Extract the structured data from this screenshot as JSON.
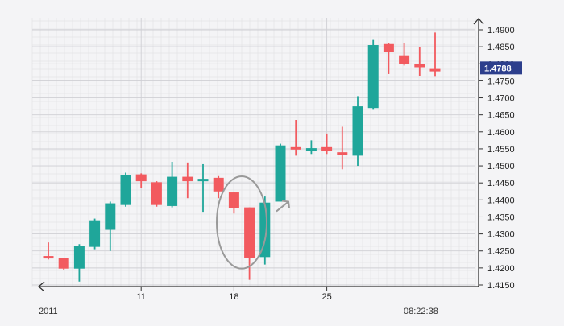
{
  "chart_data": {
    "type": "candlestick",
    "x_tick_labels": [
      "11",
      "18",
      "25"
    ],
    "x_tick_candle_index": [
      6,
      12,
      18
    ],
    "start_label": "2011",
    "time_label": "08:22:38",
    "y_ticks": [
      1.415,
      1.42,
      1.425,
      1.43,
      1.435,
      1.44,
      1.445,
      1.45,
      1.455,
      1.46,
      1.465,
      1.47,
      1.475,
      1.48,
      1.485,
      1.49
    ],
    "y_tick_labels": [
      "1.4150",
      "1.4200",
      "1.4250",
      "1.4300",
      "1.4350",
      "1.4400",
      "1.4450",
      "1.4500",
      "1.4550",
      "1.4600",
      "1.4650",
      "1.4700",
      "1.4750",
      "1.4800",
      "1.4850",
      "1.4900"
    ],
    "ylim": [
      1.415,
      1.492
    ],
    "current_price": 1.4788,
    "current_price_label": "1.4788",
    "highlighted_candles": [
      12,
      13
    ],
    "grid": true,
    "colors": {
      "up": "#1fa69a",
      "down": "#f25a5f",
      "price_tag": "#2c3e8c",
      "axis": "#333333",
      "highlight": "#9a9a9a",
      "grid_minor": "#e3e3e6",
      "grid_major": "#cfcfd4"
    },
    "candles": [
      {
        "o": 1.4235,
        "h": 1.4275,
        "l": 1.4225,
        "c": 1.4228
      },
      {
        "o": 1.423,
        "h": 1.423,
        "l": 1.4195,
        "c": 1.4198
      },
      {
        "o": 1.4198,
        "h": 1.427,
        "l": 1.416,
        "c": 1.4265
      },
      {
        "o": 1.4262,
        "h": 1.4345,
        "l": 1.4255,
        "c": 1.434
      },
      {
        "o": 1.4312,
        "h": 1.4395,
        "l": 1.425,
        "c": 1.439
      },
      {
        "o": 1.4385,
        "h": 1.448,
        "l": 1.438,
        "c": 1.4472
      },
      {
        "o": 1.4475,
        "h": 1.4478,
        "l": 1.4435,
        "c": 1.4455
      },
      {
        "o": 1.4452,
        "h": 1.4455,
        "l": 1.438,
        "c": 1.4385
      },
      {
        "o": 1.4382,
        "h": 1.4512,
        "l": 1.4378,
        "c": 1.4468
      },
      {
        "o": 1.4468,
        "h": 1.451,
        "l": 1.4405,
        "c": 1.4455
      },
      {
        "o": 1.446,
        "h": 1.4505,
        "l": 1.4365,
        "c": 1.4462
      },
      {
        "o": 1.4465,
        "h": 1.447,
        "l": 1.4405,
        "c": 1.4425
      },
      {
        "o": 1.4422,
        "h": 1.4422,
        "l": 1.436,
        "c": 1.4375
      },
      {
        "o": 1.4378,
        "h": 1.4378,
        "l": 1.4165,
        "c": 1.423
      },
      {
        "o": 1.4232,
        "h": 1.441,
        "l": 1.421,
        "c": 1.4392
      },
      {
        "o": 1.4395,
        "h": 1.4565,
        "l": 1.4395,
        "c": 1.456
      },
      {
        "o": 1.4555,
        "h": 1.4635,
        "l": 1.453,
        "c": 1.4552
      },
      {
        "o": 1.4548,
        "h": 1.4575,
        "l": 1.4535,
        "c": 1.4552
      },
      {
        "o": 1.4555,
        "h": 1.4595,
        "l": 1.4535,
        "c": 1.4545
      },
      {
        "o": 1.454,
        "h": 1.4615,
        "l": 1.449,
        "c": 1.4535
      },
      {
        "o": 1.453,
        "h": 1.4705,
        "l": 1.45,
        "c": 1.4675
      },
      {
        "o": 1.467,
        "h": 1.487,
        "l": 1.4665,
        "c": 1.4855
      },
      {
        "o": 1.4858,
        "h": 1.486,
        "l": 1.477,
        "c": 1.4835
      },
      {
        "o": 1.4825,
        "h": 1.486,
        "l": 1.4795,
        "c": 1.48
      },
      {
        "o": 1.48,
        "h": 1.485,
        "l": 1.4765,
        "c": 1.479
      },
      {
        "o": 1.4785,
        "h": 1.4892,
        "l": 1.4762,
        "c": 1.478
      }
    ]
  }
}
